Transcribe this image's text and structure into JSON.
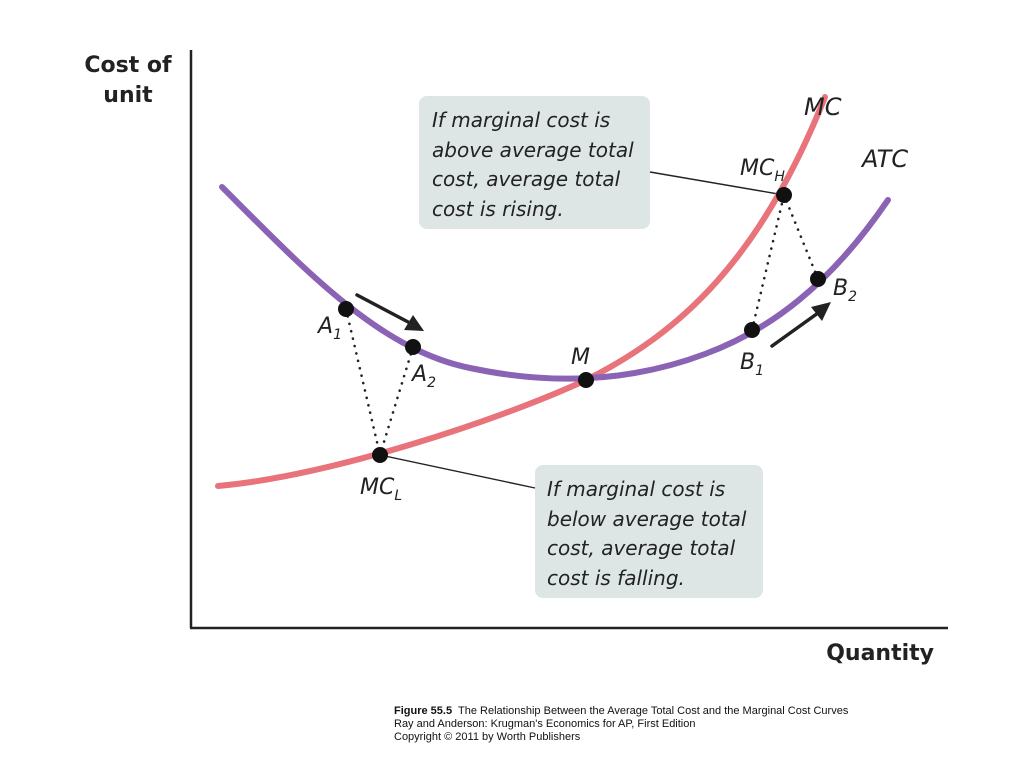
{
  "diagram": {
    "y_axis_title_line1": "Cost of",
    "y_axis_title_line2": "unit",
    "x_axis_title": "Quantity",
    "curves": {
      "mc": {
        "label": "MC",
        "color": "#e8737a"
      },
      "atc": {
        "label": "ATC",
        "color": "#8a63b5"
      }
    },
    "points": {
      "a1": {
        "base": "A",
        "sub": "1"
      },
      "a2": {
        "base": "A",
        "sub": "2"
      },
      "m": {
        "base": "M",
        "sub": ""
      },
      "b1": {
        "base": "B",
        "sub": "1"
      },
      "b2": {
        "base": "B",
        "sub": "2"
      },
      "mch": {
        "base": "MC",
        "sub": "H"
      },
      "mcl": {
        "base": "MC",
        "sub": "L"
      }
    },
    "box_top": {
      "line1": "If marginal cost is",
      "line2": "above average total",
      "line3": "cost, average total",
      "line4": "cost is rising."
    },
    "box_bottom": {
      "line1": "If marginal cost is",
      "line2": "below average total",
      "line3": "cost, average total",
      "line4": "cost is falling."
    },
    "box_color": "#dde6e4"
  },
  "caption": {
    "figure": "Figure 55.5",
    "title": "The Relationship Between the Average Total Cost and the Marginal Cost Curves",
    "line2": "Ray and Anderson: Krugman's Economics for AP, First Edition",
    "line3": "Copyright © 2011 by Worth Publishers"
  }
}
